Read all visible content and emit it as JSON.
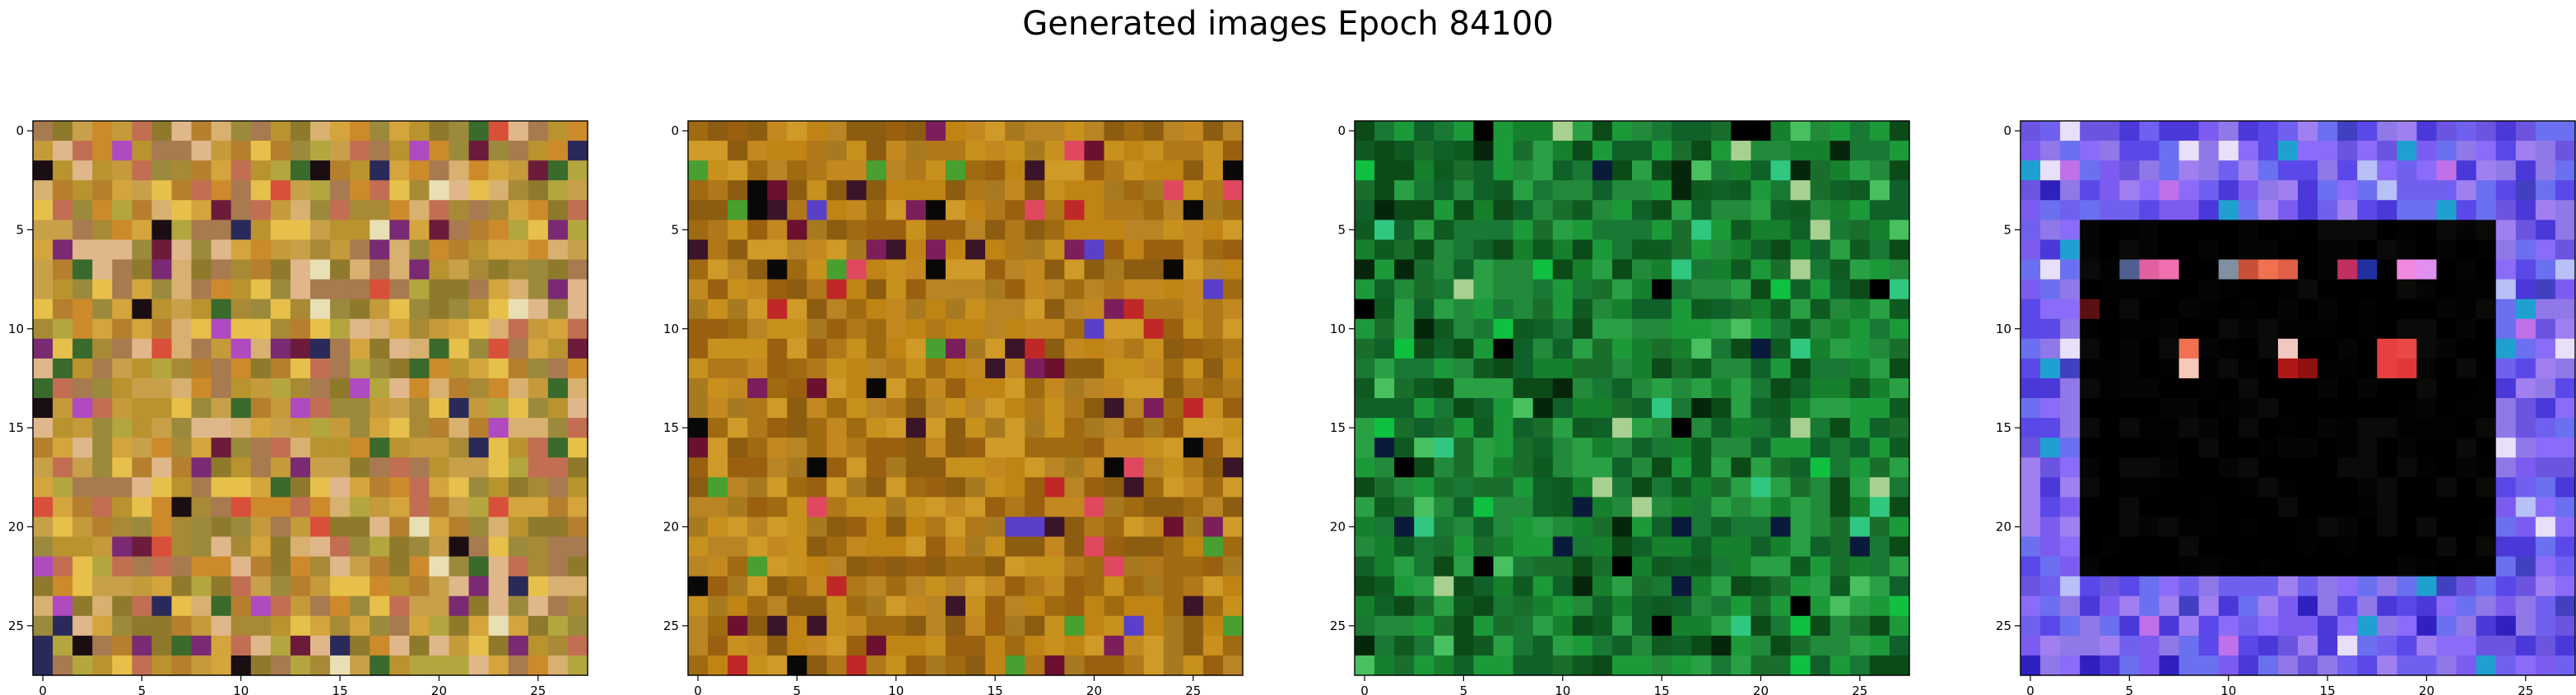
{
  "figure": {
    "title": "Generated images Epoch 84100"
  },
  "axes": {
    "x_ticks": [
      "0",
      "5",
      "10",
      "15",
      "20",
      "25"
    ],
    "y_ticks": [
      "0",
      "5",
      "10",
      "15",
      "20",
      "25"
    ],
    "grid_size": 28
  },
  "panels": [
    {
      "palette": [
        "#c49a3a",
        "#b9932e",
        "#d4a53c",
        "#a88a36",
        "#c8a04a",
        "#9c8a3c",
        "#d8b070",
        "#b57f2e",
        "#c26e52",
        "#e0b78a",
        "#8f7a2c",
        "#cc8a2a",
        "#b4a63e",
        "#e6c04a",
        "#a77a50"
      ],
      "accents": [
        "#6c1c3a",
        "#2a2a5a",
        "#3a6a2c",
        "#d8503a",
        "#b04ac0",
        "#1a0e12",
        "#e8e0b4",
        "#7a2a72"
      ]
    },
    {
      "palette": [
        "#b07818",
        "#c08414",
        "#a06a10",
        "#c8901c",
        "#9a6010",
        "#d09a28",
        "#b88424",
        "#a87a20",
        "#8c5c10",
        "#c48820"
      ],
      "accents": [
        "#6c1030",
        "#3a1428",
        "#5a40c8",
        "#c02828",
        "#e04860",
        "#0a0806",
        "#7c1e5c",
        "#48a030"
      ]
    },
    {
      "palette": [
        "#1a6e2c",
        "#0e5a20",
        "#16802c",
        "#228a3a",
        "#0c4a18",
        "#1c9a3a",
        "#2aa044",
        "#10602a",
        "#187834"
      ],
      "accents": [
        "#06260c",
        "#48c060",
        "#10c040",
        "#a8d090",
        "#000000",
        "#30c880",
        "#0a1a3a"
      ]
    },
    {
      "palette": [
        "#7060f0",
        "#5a48e8",
        "#8a6cf8",
        "#6a70f0",
        "#9078e8",
        "#4a38d8",
        "#7c5cf0",
        "#6a54e0",
        "#a080f0"
      ],
      "accents": [
        "#3020c0",
        "#b8c0f8",
        "#c070e8",
        "#20a0d0",
        "#e8e0f8",
        "#4040c0"
      ],
      "inner": [
        "#000000",
        "#020202",
        "#050505",
        "#0a0a08",
        "#000000",
        "#000000"
      ],
      "features": [
        {
          "row": 7,
          "col": 6,
          "color": "#e060a0"
        },
        {
          "row": 7,
          "col": 7,
          "color": "#f070b0"
        },
        {
          "row": 7,
          "col": 11,
          "color": "#c85038"
        },
        {
          "row": 7,
          "col": 12,
          "color": "#f07050"
        },
        {
          "row": 7,
          "col": 13,
          "color": "#e06048"
        },
        {
          "row": 7,
          "col": 17,
          "color": "#2030a0"
        },
        {
          "row": 7,
          "col": 19,
          "color": "#f088e0"
        },
        {
          "row": 7,
          "col": 20,
          "color": "#e090f0"
        },
        {
          "row": 7,
          "col": 16,
          "color": "#c03060"
        },
        {
          "row": 9,
          "col": 3,
          "color": "#5a1010"
        },
        {
          "row": 11,
          "col": 8,
          "color": "#f07050"
        },
        {
          "row": 12,
          "col": 8,
          "color": "#f8c8b8"
        },
        {
          "row": 11,
          "col": 13,
          "color": "#f0c8c0"
        },
        {
          "row": 12,
          "col": 13,
          "color": "#b01818"
        },
        {
          "row": 12,
          "col": 14,
          "color": "#901010"
        },
        {
          "row": 11,
          "col": 18,
          "color": "#e84040"
        },
        {
          "row": 11,
          "col": 19,
          "color": "#e84848"
        },
        {
          "row": 12,
          "col": 18,
          "color": "#e84040"
        },
        {
          "row": 12,
          "col": 19,
          "color": "#e03838"
        },
        {
          "row": 7,
          "col": 5,
          "color": "#506090"
        },
        {
          "row": 7,
          "col": 10,
          "color": "#8090a0"
        }
      ]
    }
  ]
}
